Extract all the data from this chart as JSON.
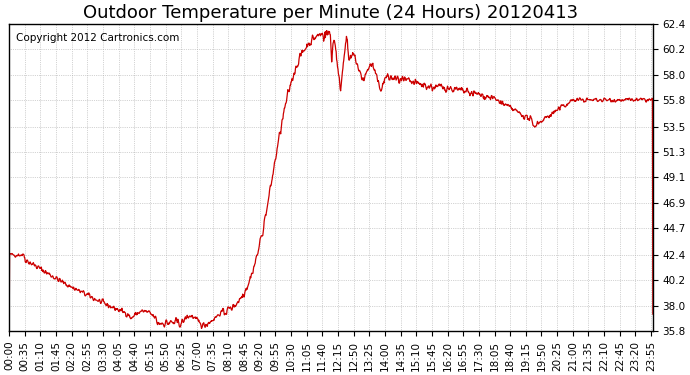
{
  "title": "Outdoor Temperature per Minute (24 Hours) 20120413",
  "copyright_text": "Copyright 2012 Cartronics.com",
  "line_color": "#cc0000",
  "background_color": "#ffffff",
  "plot_bg_color": "#ffffff",
  "grid_color": "#aaaaaa",
  "ylim": [
    35.8,
    62.4
  ],
  "yticks": [
    35.8,
    38.0,
    40.2,
    42.4,
    44.7,
    46.9,
    49.1,
    51.3,
    53.5,
    55.8,
    58.0,
    60.2,
    62.4
  ],
  "xtick_labels": [
    "00:00",
    "00:35",
    "01:10",
    "01:45",
    "02:20",
    "02:55",
    "03:30",
    "04:05",
    "04:40",
    "05:15",
    "05:50",
    "06:25",
    "07:00",
    "07:35",
    "08:10",
    "08:45",
    "09:20",
    "09:55",
    "10:30",
    "11:05",
    "11:40",
    "12:15",
    "12:50",
    "13:25",
    "14:00",
    "14:35",
    "15:10",
    "15:45",
    "16:20",
    "16:55",
    "17:30",
    "18:05",
    "18:40",
    "19:15",
    "19:50",
    "20:25",
    "21:00",
    "21:35",
    "22:10",
    "22:45",
    "23:20",
    "23:55"
  ],
  "title_fontsize": 13,
  "tick_fontsize": 7.5,
  "copyright_fontsize": 7.5
}
